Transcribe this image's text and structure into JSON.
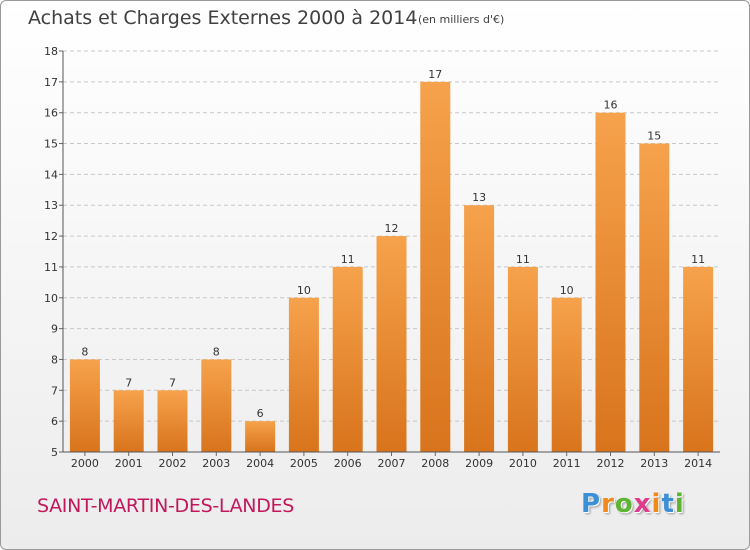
{
  "title": "Achats et Charges Externes 2000 à 2014",
  "unit": "(en milliers d'€)",
  "commune": "SAINT-MARTIN-DES-LANDES",
  "brand": {
    "letters": [
      "P",
      "r",
      "o",
      "x",
      "i",
      "t",
      "i"
    ],
    "colors": [
      "#3a8fd6",
      "#f08a1c",
      "#5cb531",
      "#e03a8c",
      "#f08a1c",
      "#3a8fd6",
      "#5cb531"
    ]
  },
  "colors": {
    "bar_top": "#f6a24c",
    "bar_bottom": "#d8741c"
  },
  "chart_data": {
    "type": "bar",
    "title": "Achats et Charges Externes 2000 à 2014",
    "xlabel": "",
    "ylabel": "",
    "categories": [
      "2000",
      "2001",
      "2002",
      "2003",
      "2004",
      "2005",
      "2006",
      "2007",
      "2008",
      "2009",
      "2010",
      "2011",
      "2012",
      "2013",
      "2014"
    ],
    "values": [
      8,
      7,
      7,
      8,
      6,
      10,
      11,
      12,
      17,
      13,
      11,
      10,
      16,
      15,
      11
    ],
    "ylim": [
      5,
      18
    ],
    "yticks": [
      5,
      6,
      7,
      8,
      9,
      10,
      11,
      12,
      13,
      14,
      15,
      16,
      17,
      18
    ],
    "grid": true,
    "legend": "none"
  }
}
